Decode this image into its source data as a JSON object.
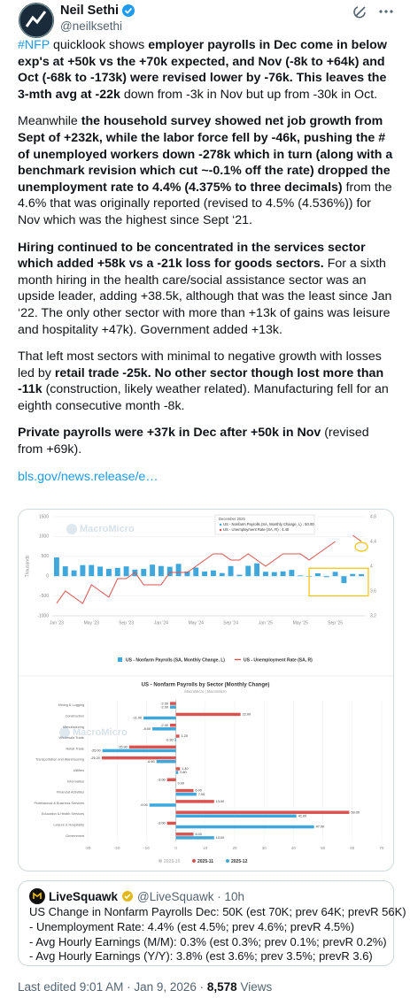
{
  "tweet": {
    "author": "Neil Sethi",
    "handle": "@neilksethi",
    "paragraphs": [
      [
        {
          "text": "#NFP",
          "link": true
        },
        {
          "text": " quicklook shows "
        },
        {
          "text": "employer payrolls in Dec come in below exp's at +50k vs the +70k expected, and Nov (-8k to +64k) and Oct (-68k to -173k) were revised lower by -76k.  This leaves the 3-mth avg at -22k",
          "bold": true
        },
        {
          "text": " down from -3k in Nov but up from -30k in Oct."
        }
      ],
      [
        {
          "text": "Meanwhile "
        },
        {
          "text": "the household survey showed net job growth from Sept of +232k, while the labor force fell by -46k, pushing the # of unemployed workers down -278k which in turn (along with a benchmark revision which cut ~-0.1% off the rate) dropped the unemployment rate to 4.4% (4.375% to three decimals)",
          "bold": true
        },
        {
          "text": " from the 4.6% that was originally reported (revised to 4.5% (4.536%)) for Nov which was the highest since Sept ‘21."
        }
      ],
      [
        {
          "text": "Hiring continued to be concentrated in the services sector which added +58k vs a -21k loss for goods sectors.",
          "bold": true
        },
        {
          "text": " For a sixth month hiring in the health care/social assistance sector was an upside leader, adding +38.5k, although that was the least since Jan ‘22. The only other sector with more than +13k of gains was leisure and hospitality +47k). Government added +13k."
        }
      ],
      [
        {
          "text": "That left most sectors with minimal to negative growth with losses led by "
        },
        {
          "text": "retail trade -25k. No other sector though lost more than -11k",
          "bold": true
        },
        {
          "text": " (construction, likely weather related). Manufacturing fell for an eighth consecutive month -8k."
        }
      ],
      [
        {
          "text": "Private payrolls were +37k in Dec after +50k in Nov",
          "bold": true
        },
        {
          "text": " (revised from +69k)."
        }
      ]
    ],
    "link": "bls.gov/news.release/e…",
    "quote": {
      "author": "LiveSquawk",
      "handle_time": "@LiveSquawk · 10h",
      "lines": [
        "US Change in Nonfarm Payrolls Dec: 50K (est 70K; prev 64K; prevR 56K)",
        "- Unemployment Rate: 4.4% (est 4.5%; prev 4.6%; prevR 4.5%)",
        "- Avg Hourly Earnings (M/M): 0.3% (est 0.3%; prev 0.1%; prevR 0.2%)",
        "- Avg Hourly Earnings (Y/Y): 3.8% (est 3.6%; prev 3.5%; prevR 3.6)"
      ]
    },
    "footer": {
      "edited": "Last edited 9:01 AM · Jan 9, 2026 ·",
      "views": "8,578",
      "views_label": "Views"
    }
  },
  "chart_data": [
    {
      "type": "combo",
      "watermark": "MacroMicro",
      "y_label": "Thousands",
      "categories": [
        "Jan '23",
        null,
        null,
        null,
        "May '23",
        null,
        null,
        null,
        "Sep '23",
        null,
        null,
        null,
        "Jan '24",
        null,
        null,
        null,
        "May '24",
        null,
        null,
        null,
        "Sep '24",
        null,
        null,
        null,
        "Jan '25",
        null,
        null,
        null,
        "May '25",
        null,
        null,
        null,
        "Sep '25",
        null,
        null,
        null
      ],
      "series": [
        {
          "name": "US - Nonfarm Payrolls (SA, Monthly Change, L)",
          "type": "bar",
          "color": "#3ea8dc",
          "values": [
            472,
            248,
            146,
            278,
            281,
            240,
            184,
            210,
            246,
            165,
            182,
            290,
            256,
            236,
            310,
            118,
            216,
            118,
            144,
            78,
            255,
            36,
            261,
            323,
            111,
            102,
            120,
            158,
            19,
            -13,
            72,
            -26,
            108,
            -173,
            56,
            50
          ]
        },
        {
          "name": "US - Unemployment Rate (SA, R)",
          "type": "line",
          "axis": "y2",
          "color": "#d9534f",
          "values": [
            3.4,
            3.6,
            3.5,
            3.4,
            3.7,
            3.6,
            3.5,
            3.8,
            3.8,
            3.9,
            3.7,
            3.7,
            3.7,
            3.9,
            3.9,
            3.9,
            4.0,
            4.1,
            4.2,
            4.2,
            4.1,
            4.1,
            4.2,
            4.1,
            4.0,
            4.1,
            4.2,
            4.2,
            4.2,
            4.1,
            4.2,
            4.3,
            4.4,
            null,
            4.5,
            4.4
          ]
        }
      ],
      "ylim": [
        -1000,
        1500
      ],
      "yticks": [
        -1000,
        -500,
        0,
        500,
        1000,
        1500
      ],
      "y2lim": [
        3.2,
        4.8
      ],
      "y2ticks": [
        3.2,
        3.6,
        4.0,
        4.4,
        4.8
      ],
      "grid": true,
      "tooltip": {
        "title": "December 2025",
        "lines": [
          "US - Nonfarm Payrolls (SA, Monthly Change, L) : 50.00",
          "US - Unemployment Rate (SA, R) : 4.40"
        ]
      }
    },
    {
      "type": "hbar",
      "title": "US - Nonfarm Payrolls by Sector (Monthly Change)",
      "subtitle": "MacroMicro | MacroMicro",
      "watermark": "MacroMicro",
      "categories": [
        "Mining & Logging",
        "Construction",
        "Manufacturing",
        "Wholesale Trade",
        "Retail Trade",
        "Transportation and Warehousing",
        "Utilities",
        "Information",
        "Financial Activities",
        "Professional & Business Services",
        "Education & Health Services",
        "Leisure & Hospitality",
        "Government"
      ],
      "disabled_series": [
        {
          "name": "2025-10",
          "color": "#cccccc"
        }
      ],
      "series": [
        {
          "name": "2025-11",
          "color": "#d9534f",
          "values": [
            -2,
            22,
            -2,
            1.2,
            -15.9,
            -25.2,
            1.4,
            -3,
            6,
            13,
            59,
            -3,
            6
          ],
          "value_labels": [
            "-2.00",
            "22.00",
            "-2.00",
            "1.20",
            "-15.90",
            "-25.20",
            "1.40",
            "-3.00",
            "6.00",
            "13.00",
            "59.00",
            "-3.00",
            "6.00"
          ]
        },
        {
          "name": "2025-12",
          "color": "#3ea8dc",
          "values": [
            -2,
            -11,
            -8,
            -0.3,
            -25,
            -6.6,
            0.8,
            0,
            7,
            -9,
            41,
            47,
            13
          ],
          "value_labels": [
            "-2.00",
            "-11.00",
            "-8.00",
            "-0.30",
            "-25.00",
            "-6.60",
            "0.80",
            "0.00",
            "7.00",
            "-9.00",
            "41.00",
            "47.00",
            "13.00"
          ]
        }
      ],
      "xlim": [
        -30,
        70
      ],
      "xticks": [
        -30,
        -20,
        -10,
        0,
        10,
        20,
        30,
        40,
        50,
        60,
        70
      ],
      "grid": true
    }
  ]
}
